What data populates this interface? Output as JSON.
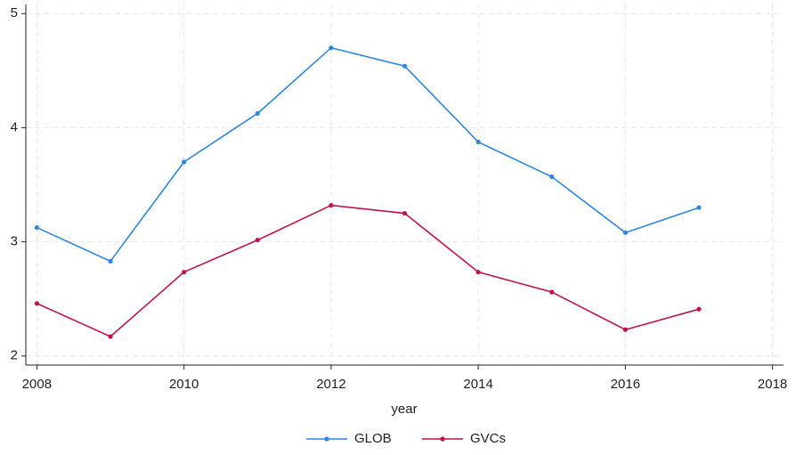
{
  "chart_data": {
    "type": "line",
    "x": [
      2008,
      2009,
      2010,
      2011,
      2012,
      2013,
      2014,
      2015,
      2016,
      2017
    ],
    "series": [
      {
        "name": "GLOB",
        "color": "#2b87e3",
        "values": [
          3.125,
          2.83,
          3.7,
          4.125,
          4.7,
          4.54,
          3.875,
          3.57,
          3.08,
          3.3
        ]
      },
      {
        "name": "GVCs",
        "color": "#c4124f",
        "values": [
          2.46,
          2.17,
          2.735,
          3.015,
          3.32,
          3.25,
          2.735,
          2.56,
          2.23,
          2.41
        ]
      }
    ],
    "xlabel": "year",
    "xlim": [
      2007.85,
      2018.15
    ],
    "xticks": [
      2008,
      2010,
      2012,
      2014,
      2016,
      2018
    ],
    "ylim": [
      1.92,
      5.08
    ],
    "yticks": [
      2,
      3,
      4,
      5
    ],
    "grid": true,
    "legend": "bottom"
  }
}
